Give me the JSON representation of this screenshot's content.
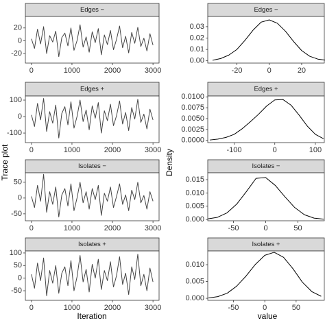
{
  "labels": {
    "trace_y": "Trace plot",
    "trace_x": "Iteration",
    "density_y": "Density",
    "density_x": "value"
  },
  "chart_data": [
    {
      "type": "line",
      "title": "Edges −",
      "color": "#444444",
      "x": [
        0,
        75,
        150,
        225,
        300,
        375,
        450,
        525,
        600,
        675,
        750,
        825,
        900,
        975,
        1050,
        1125,
        1200,
        1275,
        1350,
        1425,
        1500,
        1575,
        1650,
        1725,
        1800,
        1875,
        1950,
        2025,
        2100,
        2175,
        2250,
        2325,
        2400,
        2475,
        2550,
        2625,
        2700,
        2775,
        2850,
        2925,
        3000
      ],
      "values": [
        3,
        -12,
        18,
        -5,
        22,
        -20,
        8,
        -2,
        15,
        -25,
        5,
        12,
        -8,
        20,
        -15,
        0,
        25,
        -10,
        6,
        -18,
        14,
        -3,
        19,
        -22,
        9,
        -6,
        16,
        -14,
        2,
        23,
        -11,
        7,
        -19,
        13,
        -4,
        21,
        -9,
        4,
        -16,
        11,
        -7
      ],
      "xlim": [
        -150,
        3150
      ],
      "xticks": [
        0,
        1000,
        2000,
        3000
      ],
      "ylim": [
        -35,
        38
      ],
      "yticks": [
        -20,
        0,
        20
      ]
    },
    {
      "type": "line",
      "title": "Edges −",
      "color": "#000000",
      "x": [
        -35,
        -30,
        -25,
        -20,
        -15,
        -10,
        -5,
        0,
        5,
        10,
        15,
        20,
        25,
        30,
        35
      ],
      "values": [
        0.0005,
        0.002,
        0.005,
        0.01,
        0.018,
        0.027,
        0.034,
        0.036,
        0.033,
        0.026,
        0.017,
        0.009,
        0.004,
        0.0015,
        0.0005
      ],
      "xlim": [
        -38,
        34
      ],
      "xticks": [
        -20,
        0,
        20
      ],
      "ylim": [
        -0.002,
        0.039
      ],
      "yticks": [
        {
          "value": 0,
          "label": "0.00"
        },
        {
          "value": 0.01,
          "label": "0.01"
        },
        {
          "value": 0.02,
          "label": "0.02"
        },
        {
          "value": 0.03,
          "label": "0.03"
        }
      ]
    },
    {
      "type": "line",
      "title": "Edges +",
      "color": "#444444",
      "x": [
        0,
        75,
        150,
        225,
        300,
        375,
        450,
        525,
        600,
        675,
        750,
        825,
        900,
        975,
        1050,
        1125,
        1200,
        1275,
        1350,
        1425,
        1500,
        1575,
        1650,
        1725,
        1800,
        1875,
        1950,
        2025,
        2100,
        2175,
        2250,
        2325,
        2400,
        2475,
        2550,
        2625,
        2700,
        2775,
        2850,
        2925,
        3000
      ],
      "values": [
        10,
        -60,
        80,
        -20,
        110,
        -90,
        30,
        -40,
        70,
        -130,
        20,
        60,
        -50,
        90,
        -70,
        0,
        100,
        -30,
        40,
        -80,
        65,
        -10,
        85,
        -100,
        35,
        -25,
        75,
        -55,
        5,
        95,
        -45,
        25,
        -85,
        55,
        -15,
        105,
        -35,
        15,
        -75,
        45,
        -20
      ],
      "xlim": [
        -150,
        3150
      ],
      "xticks": [
        0,
        1000,
        2000,
        3000
      ],
      "ylim": [
        -158,
        125
      ],
      "yticks": [
        -100,
        0,
        100
      ]
    },
    {
      "type": "line",
      "title": "Edges +",
      "color": "#000000",
      "x": [
        -160,
        -140,
        -120,
        -100,
        -80,
        -60,
        -40,
        -20,
        0,
        20,
        40,
        60,
        80,
        100,
        120
      ],
      "values": [
        0.0001,
        0.0003,
        0.0007,
        0.0014,
        0.0027,
        0.0043,
        0.006,
        0.0079,
        0.0093,
        0.0094,
        0.0081,
        0.0058,
        0.0033,
        0.0014,
        0.0004
      ],
      "xlim": [
        -165,
        122
      ],
      "xticks": [
        -100,
        0,
        100
      ],
      "ylim": [
        -0.0005,
        0.0102
      ],
      "yticks": [
        {
          "value": 0,
          "label": "0.0000"
        },
        {
          "value": 0.0025,
          "label": "0.0025"
        },
        {
          "value": 0.005,
          "label": "0.0050"
        },
        {
          "value": 0.0075,
          "label": "0.0075"
        },
        {
          "value": 0.01,
          "label": "0.0100"
        }
      ]
    },
    {
      "type": "line",
      "title": "Isolates −",
      "color": "#444444",
      "x": [
        0,
        75,
        150,
        225,
        300,
        375,
        450,
        525,
        600,
        675,
        750,
        825,
        900,
        975,
        1050,
        1125,
        1200,
        1275,
        1350,
        1425,
        1500,
        1575,
        1650,
        1725,
        1800,
        1875,
        1950,
        2025,
        2100,
        2175,
        2250,
        2325,
        2400,
        2475,
        2550,
        2625,
        2700,
        2775,
        2850,
        2925,
        3000
      ],
      "values": [
        5,
        -30,
        40,
        -10,
        75,
        -45,
        20,
        -20,
        35,
        -60,
        10,
        30,
        -25,
        45,
        -40,
        0,
        50,
        -15,
        20,
        -35,
        30,
        -5,
        40,
        -55,
        15,
        -10,
        35,
        -30,
        5,
        45,
        -20,
        10,
        -40,
        25,
        -5,
        50,
        -15,
        8,
        -35,
        20,
        -10
      ],
      "xlim": [
        -150,
        3150
      ],
      "xticks": [
        0,
        1000,
        2000,
        3000
      ],
      "ylim": [
        -72,
        80
      ],
      "yticks": [
        -50,
        0,
        50
      ]
    },
    {
      "type": "line",
      "title": "Isolates −",
      "color": "#000000",
      "x": [
        -90,
        -75,
        -60,
        -45,
        -30,
        -15,
        0,
        15,
        30,
        45,
        60,
        75,
        90
      ],
      "values": [
        0.0002,
        0.0008,
        0.0025,
        0.0058,
        0.0105,
        0.0155,
        0.0158,
        0.0128,
        0.0085,
        0.0045,
        0.0018,
        0.0005,
        0.0001
      ],
      "xlim": [
        -90,
        91
      ],
      "xticks": [
        -50,
        0,
        50
      ],
      "ylim": [
        -0.0005,
        0.0176
      ],
      "yticks": [
        {
          "value": 0,
          "label": "0.000"
        },
        {
          "value": 0.005,
          "label": "0.005"
        },
        {
          "value": 0.01,
          "label": "0.010"
        },
        {
          "value": 0.015,
          "label": "0.015"
        }
      ]
    },
    {
      "type": "line",
      "title": "Isolates +",
      "color": "#444444",
      "x": [
        0,
        75,
        150,
        225,
        300,
        375,
        450,
        525,
        600,
        675,
        750,
        825,
        900,
        975,
        1050,
        1125,
        1200,
        1275,
        1350,
        1425,
        1500,
        1575,
        1650,
        1725,
        1800,
        1875,
        1950,
        2025,
        2100,
        2175,
        2250,
        2325,
        2400,
        2475,
        2550,
        2625,
        2700,
        2775,
        2850,
        2925,
        3000
      ],
      "values": [
        15,
        -40,
        60,
        -10,
        80,
        -70,
        30,
        -20,
        50,
        -60,
        20,
        45,
        -30,
        70,
        -50,
        5,
        90,
        -15,
        35,
        -55,
        55,
        0,
        75,
        -45,
        30,
        -10,
        65,
        -35,
        10,
        85,
        -25,
        20,
        -65,
        45,
        -5,
        95,
        -30,
        15,
        -50,
        40,
        -15
      ],
      "xlim": [
        -150,
        3150
      ],
      "xticks": [
        0,
        1000,
        2000,
        3000
      ],
      "ylim": [
        -88,
        108
      ],
      "yticks": [
        -50,
        0,
        50,
        100
      ]
    },
    {
      "type": "line",
      "title": "Isolates +",
      "color": "#000000",
      "x": [
        -90,
        -75,
        -60,
        -45,
        -30,
        -15,
        0,
        15,
        30,
        45,
        60,
        75,
        90
      ],
      "values": [
        0.0001,
        0.0005,
        0.0015,
        0.0036,
        0.0066,
        0.0101,
        0.0128,
        0.0137,
        0.0122,
        0.0088,
        0.0048,
        0.002,
        0.0006
      ],
      "xlim": [
        -91,
        95
      ],
      "xticks": [
        -50,
        0,
        50
      ],
      "ylim": [
        -0.0006,
        0.0141
      ],
      "yticks": [
        {
          "value": 0,
          "label": "0.000"
        },
        {
          "value": 0.005,
          "label": "0.005"
        },
        {
          "value": 0.01,
          "label": "0.010"
        }
      ]
    }
  ]
}
